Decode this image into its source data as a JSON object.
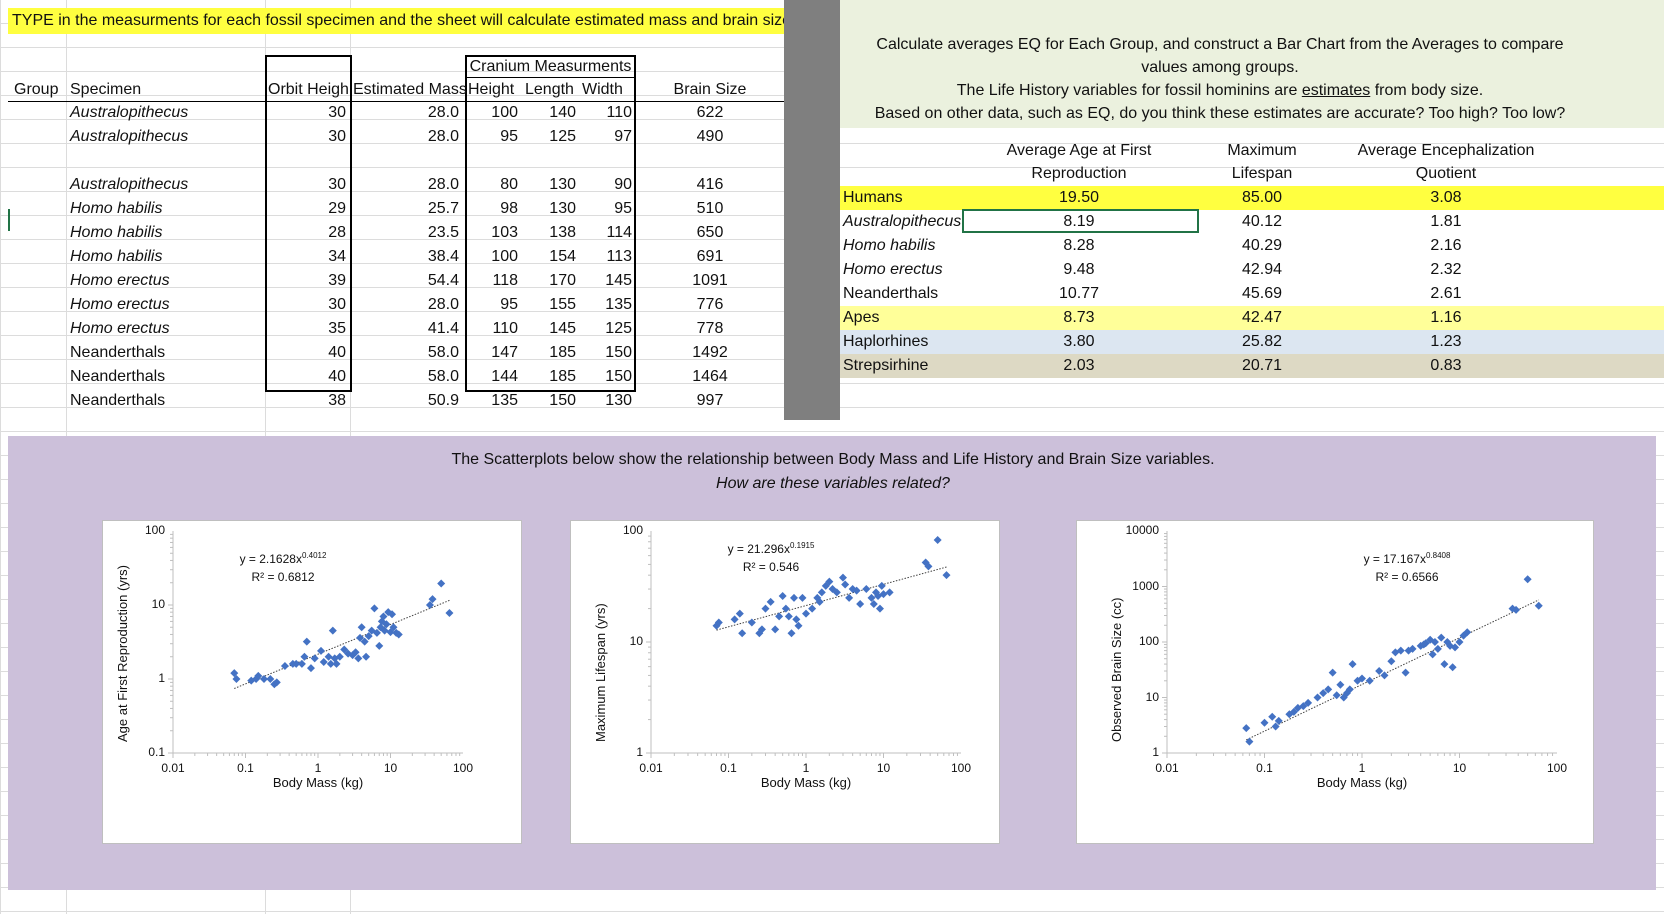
{
  "banner": "TYPE in the measurments for each fossil specimen and the sheet will calculate estimated mass and brain size",
  "fossil_table": {
    "headers": {
      "group": "Group",
      "specimen": "Specimen",
      "orbit": "Orbit Heigh",
      "mass": "Estimated Mass",
      "cranium_group": "Cranium Measurments",
      "height": "Height",
      "length": "Length",
      "width": "Width",
      "brain": "Brain Size"
    },
    "rows": [
      {
        "specimen": "Australopithecus",
        "italic": true,
        "orbit": "30",
        "mass": "28.0",
        "height": "100",
        "length": "140",
        "width": "110",
        "brain": "622"
      },
      {
        "specimen": "Australopithecus",
        "italic": true,
        "orbit": "30",
        "mass": "28.0",
        "height": "95",
        "length": "125",
        "width": "97",
        "brain": "490"
      },
      {
        "specimen": "Australopithecus",
        "italic": true,
        "orbit": "30",
        "mass": "28.0",
        "height": "80",
        "length": "130",
        "width": "90",
        "brain": "416"
      },
      {
        "specimen": "Homo habilis",
        "italic": true,
        "orbit": "29",
        "mass": "25.7",
        "height": "98",
        "length": "130",
        "width": "95",
        "brain": "510"
      },
      {
        "specimen": "Homo habilis",
        "italic": true,
        "orbit": "28",
        "mass": "23.5",
        "height": "103",
        "length": "138",
        "width": "114",
        "brain": "650"
      },
      {
        "specimen": "Homo habilis",
        "italic": true,
        "orbit": "34",
        "mass": "38.4",
        "height": "100",
        "length": "154",
        "width": "113",
        "brain": "691"
      },
      {
        "specimen": "Homo erectus",
        "italic": true,
        "orbit": "39",
        "mass": "54.4",
        "height": "118",
        "length": "170",
        "width": "145",
        "brain": "1091"
      },
      {
        "specimen": "Homo erectus",
        "italic": true,
        "orbit": "30",
        "mass": "28.0",
        "height": "95",
        "length": "155",
        "width": "135",
        "brain": "776"
      },
      {
        "specimen": "Homo erectus",
        "italic": true,
        "orbit": "35",
        "mass": "41.4",
        "height": "110",
        "length": "145",
        "width": "125",
        "brain": "778"
      },
      {
        "specimen": "Neanderthals",
        "italic": false,
        "orbit": "40",
        "mass": "58.0",
        "height": "147",
        "length": "185",
        "width": "150",
        "brain": "1492"
      },
      {
        "specimen": "Neanderthals",
        "italic": false,
        "orbit": "40",
        "mass": "58.0",
        "height": "144",
        "length": "185",
        "width": "150",
        "brain": "1464"
      },
      {
        "specimen": "Neanderthals",
        "italic": false,
        "orbit": "38",
        "mass": "50.9",
        "height": "135",
        "length": "150",
        "width": "130",
        "brain": "997"
      }
    ]
  },
  "instructions": {
    "line1": "Calculate averages EQ for Each Group, and construct a Bar Chart from the Averages to compare",
    "line2": "values among groups.",
    "line3_pre": "The Life History variables for fossil hominins are ",
    "line3_u": "estimates",
    "line3_post": " from body size.",
    "line4": "Based on other data, such as EQ, do you think these estimates are accurate? Too high? Too low?"
  },
  "summary_table": {
    "headers": {
      "age_1": "Average Age at First",
      "age_2": "Reproduction",
      "life_1": "Maximum",
      "life_2": "Lifespan",
      "eq_1": "Average Encephalization",
      "eq_2": "Quotient"
    },
    "rows": [
      {
        "group": "Humans",
        "italic": false,
        "age": "19.50",
        "life": "85.00",
        "eq": "3.08",
        "color": "#ffff40"
      },
      {
        "group": "Australopithecus",
        "italic": true,
        "age": "8.19",
        "life": "40.12",
        "eq": "1.81",
        "color": "#ffffff"
      },
      {
        "group": "Homo habilis",
        "italic": true,
        "age": "8.28",
        "life": "40.29",
        "eq": "2.16",
        "color": "#ffffff"
      },
      {
        "group": "Homo erectus",
        "italic": true,
        "age": "9.48",
        "life": "42.94",
        "eq": "2.32",
        "color": "#ffffff"
      },
      {
        "group": "Neanderthals",
        "italic": false,
        "age": "10.77",
        "life": "45.69",
        "eq": "2.61",
        "color": "#ffffff"
      },
      {
        "group": "Apes",
        "italic": false,
        "age": "8.73",
        "life": "42.47",
        "eq": "1.16",
        "color": "#ffff99"
      },
      {
        "group": "Haplorhines",
        "italic": false,
        "age": "3.80",
        "life": "25.82",
        "eq": "1.23",
        "color": "#dce6f1"
      },
      {
        "group": "Strepsirhine",
        "italic": false,
        "age": "2.03",
        "life": "20.71",
        "eq": "0.83",
        "color": "#ddd9c4"
      }
    ]
  },
  "scatter_section": {
    "title": "The Scatterplots below show the relationship between Body Mass and Life History and Brain Size variables.",
    "subtitle": "How are these variables related?"
  },
  "chart_data": [
    {
      "type": "scatter",
      "xlabel": "Body Mass (kg)",
      "ylabel": "Age at First Reproduction (yrs)",
      "xscale": "log",
      "yscale": "log",
      "xlim": [
        0.01,
        100
      ],
      "ylim": [
        0.1,
        100
      ],
      "x_ticks": [
        "0.01",
        "0.1",
        "1",
        "10",
        "100"
      ],
      "y_ticks": [
        "100",
        "10",
        "1",
        "0.1"
      ],
      "marker_color": "#4472c4",
      "trendline": {
        "a": 2.1628,
        "b": 0.4012,
        "eq": "y = 2.1628x",
        "exp": "0.4012",
        "r2": "R² = 0.6812"
      },
      "points": [
        [
          0.07,
          1.2
        ],
        [
          0.075,
          1.0
        ],
        [
          0.12,
          0.95
        ],
        [
          0.14,
          1.0
        ],
        [
          0.15,
          1.1
        ],
        [
          0.18,
          1.0
        ],
        [
          0.22,
          1.0
        ],
        [
          0.25,
          0.85
        ],
        [
          0.27,
          0.9
        ],
        [
          0.35,
          1.5
        ],
        [
          0.45,
          1.6
        ],
        [
          0.5,
          1.6
        ],
        [
          0.6,
          1.6
        ],
        [
          0.65,
          2.0
        ],
        [
          0.7,
          3.2
        ],
        [
          0.8,
          1.4
        ],
        [
          0.9,
          1.9
        ],
        [
          1.1,
          2.4
        ],
        [
          1.2,
          1.7
        ],
        [
          1.4,
          2.0
        ],
        [
          1.5,
          1.6
        ],
        [
          1.6,
          4.5
        ],
        [
          1.7,
          1.9
        ],
        [
          1.8,
          1.6
        ],
        [
          2.0,
          2.0
        ],
        [
          2.3,
          2.5
        ],
        [
          2.6,
          2.2
        ],
        [
          3.0,
          2.1
        ],
        [
          3.3,
          2.3
        ],
        [
          3.6,
          1.9
        ],
        [
          3.8,
          3.6
        ],
        [
          4.0,
          5.0
        ],
        [
          4.4,
          3.2
        ],
        [
          4.6,
          2.0
        ],
        [
          5.0,
          3.8
        ],
        [
          5.5,
          4.5
        ],
        [
          6.0,
          9.0
        ],
        [
          6.5,
          4.2
        ],
        [
          7.0,
          2.8
        ],
        [
          7.3,
          5.0
        ],
        [
          7.6,
          6.0
        ],
        [
          8.0,
          7.0
        ],
        [
          8.3,
          4.5
        ],
        [
          8.8,
          5.5
        ],
        [
          9.3,
          8.0
        ],
        [
          10.0,
          4.3
        ],
        [
          10.5,
          7.5
        ],
        [
          11.0,
          5.0
        ],
        [
          12.0,
          4.2
        ],
        [
          13.0,
          4.0
        ],
        [
          35.0,
          10.0
        ],
        [
          38.0,
          12.0
        ],
        [
          50.0,
          19.5
        ],
        [
          65.0,
          7.8
        ]
      ]
    },
    {
      "type": "scatter",
      "xlabel": "Body Mass (kg)",
      "ylabel": "Maximum Lifespan (yrs)",
      "xscale": "log",
      "yscale": "log",
      "xlim": [
        0.01,
        100
      ],
      "ylim": [
        1,
        100
      ],
      "x_ticks": [
        "0.01",
        "0.1",
        "1",
        "10",
        "100"
      ],
      "y_ticks": [
        "100",
        "10",
        "1"
      ],
      "marker_color": "#4472c4",
      "trendline": {
        "a": 21.296,
        "b": 0.1915,
        "eq": "y = 21.296x",
        "exp": "0.1915",
        "r2": "R² = 0.546"
      },
      "points": [
        [
          0.07,
          14
        ],
        [
          0.075,
          15
        ],
        [
          0.12,
          16
        ],
        [
          0.14,
          18
        ],
        [
          0.15,
          12
        ],
        [
          0.2,
          15
        ],
        [
          0.25,
          12
        ],
        [
          0.27,
          13
        ],
        [
          0.3,
          20
        ],
        [
          0.35,
          23
        ],
        [
          0.4,
          13
        ],
        [
          0.45,
          17
        ],
        [
          0.5,
          26
        ],
        [
          0.55,
          20
        ],
        [
          0.6,
          17
        ],
        [
          0.65,
          12
        ],
        [
          0.7,
          25
        ],
        [
          0.75,
          16
        ],
        [
          0.8,
          14
        ],
        [
          0.9,
          25
        ],
        [
          1.0,
          18
        ],
        [
          1.2,
          20
        ],
        [
          1.4,
          25
        ],
        [
          1.5,
          23
        ],
        [
          1.6,
          28
        ],
        [
          1.8,
          32
        ],
        [
          2.0,
          35
        ],
        [
          2.2,
          30
        ],
        [
          2.5,
          28
        ],
        [
          3.0,
          38
        ],
        [
          3.2,
          33
        ],
        [
          3.6,
          25
        ],
        [
          4.0,
          30
        ],
        [
          4.5,
          29
        ],
        [
          5.0,
          22
        ],
        [
          6.0,
          30
        ],
        [
          7.0,
          25
        ],
        [
          7.5,
          22
        ],
        [
          8.0,
          28
        ],
        [
          8.5,
          26
        ],
        [
          9.0,
          20
        ],
        [
          9.5,
          32
        ],
        [
          10.0,
          27
        ],
        [
          12.0,
          28
        ],
        [
          35.0,
          52
        ],
        [
          38.0,
          48
        ],
        [
          50.0,
          83
        ],
        [
          65.0,
          40
        ]
      ]
    },
    {
      "type": "scatter",
      "xlabel": "Body Mass (kg)",
      "ylabel": "Observed Brain Size (cc)",
      "xscale": "log",
      "yscale": "log",
      "xlim": [
        0.01,
        100
      ],
      "ylim": [
        1,
        10000
      ],
      "x_ticks": [
        "0.01",
        "0.1",
        "1",
        "10",
        "100"
      ],
      "y_ticks": [
        "10000",
        "1000",
        "100",
        "10",
        "1"
      ],
      "marker_color": "#4472c4",
      "trendline": {
        "a": 17.167,
        "b": 0.8408,
        "eq": "y = 17.167x",
        "exp": "0.8408",
        "r2": "R² = 0.6566"
      },
      "points": [
        [
          0.065,
          2.8
        ],
        [
          0.07,
          1.6
        ],
        [
          0.1,
          3.5
        ],
        [
          0.12,
          4.5
        ],
        [
          0.13,
          3.0
        ],
        [
          0.14,
          3.8
        ],
        [
          0.18,
          5.0
        ],
        [
          0.2,
          5.5
        ],
        [
          0.22,
          6.5
        ],
        [
          0.25,
          7.0
        ],
        [
          0.28,
          8.0
        ],
        [
          0.35,
          10
        ],
        [
          0.4,
          12
        ],
        [
          0.45,
          14
        ],
        [
          0.5,
          28
        ],
        [
          0.55,
          11
        ],
        [
          0.6,
          17
        ],
        [
          0.65,
          10
        ],
        [
          0.7,
          12
        ],
        [
          0.75,
          14
        ],
        [
          0.8,
          40
        ],
        [
          0.9,
          20
        ],
        [
          1.0,
          22
        ],
        [
          1.2,
          20
        ],
        [
          1.5,
          30
        ],
        [
          1.7,
          25
        ],
        [
          2.0,
          45
        ],
        [
          2.2,
          65
        ],
        [
          2.5,
          70
        ],
        [
          2.8,
          28
        ],
        [
          3.0,
          70
        ],
        [
          3.3,
          75
        ],
        [
          4.0,
          85
        ],
        [
          4.3,
          90
        ],
        [
          4.5,
          95
        ],
        [
          5.0,
          110
        ],
        [
          5.3,
          60
        ],
        [
          5.6,
          100
        ],
        [
          6.0,
          75
        ],
        [
          6.5,
          120
        ],
        [
          7.0,
          40
        ],
        [
          7.5,
          100
        ],
        [
          8.0,
          85
        ],
        [
          8.5,
          35
        ],
        [
          9.0,
          80
        ],
        [
          10.0,
          100
        ],
        [
          11.0,
          130
        ],
        [
          12.0,
          150
        ],
        [
          35.0,
          400
        ],
        [
          38.0,
          380
        ],
        [
          50.0,
          1350
        ],
        [
          65.0,
          450
        ]
      ]
    }
  ]
}
